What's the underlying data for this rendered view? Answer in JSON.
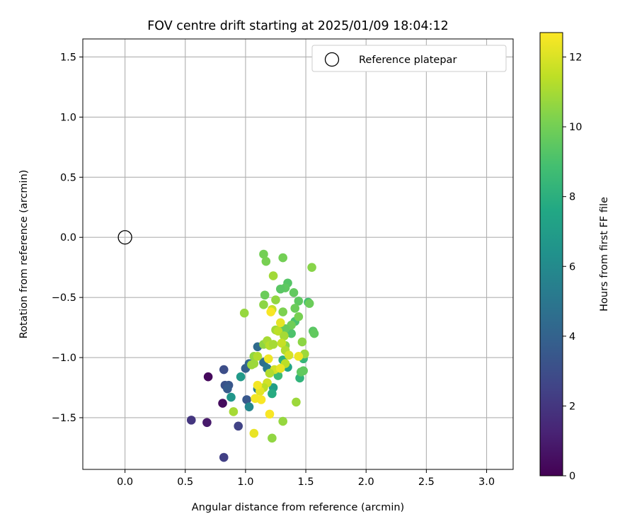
{
  "chart_data": {
    "type": "scatter",
    "title": "FOV centre drift starting at 2025/01/09 18:04:12",
    "xlabel": "Angular distance from reference (arcmin)",
    "ylabel": "Rotation from reference (arcmin)",
    "xlim": [
      -0.35,
      3.22
    ],
    "ylim": [
      -1.93,
      1.65
    ],
    "xticks": [
      0.0,
      0.5,
      1.0,
      1.5,
      2.0,
      2.5,
      3.0
    ],
    "xtick_labels": [
      "0.0",
      "0.5",
      "1.0",
      "1.5",
      "2.0",
      "2.5",
      "3.0"
    ],
    "yticks": [
      1.5,
      1.0,
      0.5,
      0.0,
      -0.5,
      -1.0,
      -1.5
    ],
    "ytick_labels": [
      "1.5",
      "1.0",
      "0.5",
      "0.0",
      "−0.5",
      "−1.0",
      "−1.5"
    ],
    "grid": true,
    "legend": {
      "position": "top-right",
      "label": "Reference platepar"
    },
    "reference_point": {
      "x": 0.0,
      "y": 0.0
    },
    "colorbar": {
      "label": "Hours from first FF file",
      "range": [
        0,
        12.7
      ],
      "ticks": [
        0,
        2,
        4,
        6,
        8,
        10,
        12
      ],
      "tick_labels": [
        "0",
        "2",
        "4",
        "6",
        "8",
        "10",
        "12"
      ],
      "colormap": "viridis"
    },
    "points": [
      [
        0.69,
        -1.16,
        0.3
      ],
      [
        0.81,
        -1.38,
        0.4
      ],
      [
        0.68,
        -1.54,
        0.9
      ],
      [
        0.55,
        -1.52,
        2.0
      ],
      [
        0.82,
        -1.83,
        2.4
      ],
      [
        0.94,
        -1.57,
        2.5
      ],
      [
        0.82,
        -1.1,
        3.0
      ],
      [
        0.83,
        -1.23,
        3.2
      ],
      [
        0.86,
        -1.23,
        3.4
      ],
      [
        0.85,
        -1.26,
        3.6
      ],
      [
        1.01,
        -1.35,
        3.5
      ],
      [
        1.0,
        -1.09,
        3.8
      ],
      [
        1.03,
        -1.05,
        4.2
      ],
      [
        1.1,
        -0.91,
        4.4
      ],
      [
        1.15,
        -1.04,
        4.6
      ],
      [
        1.18,
        -1.09,
        5.2
      ],
      [
        1.1,
        -1.26,
        5.4
      ],
      [
        1.03,
        -1.41,
        5.8
      ],
      [
        0.88,
        -1.33,
        6.6
      ],
      [
        0.96,
        -1.16,
        6.8
      ],
      [
        1.23,
        -1.25,
        7.0
      ],
      [
        1.35,
        -1.08,
        7.4
      ],
      [
        1.22,
        -1.3,
        7.8
      ],
      [
        1.31,
        -1.02,
        8.0
      ],
      [
        1.45,
        -1.17,
        8.2
      ],
      [
        1.48,
        -1.01,
        8.4
      ],
      [
        1.27,
        -1.15,
        8.6
      ],
      [
        1.52,
        -0.54,
        8.8
      ],
      [
        1.41,
        -0.7,
        9.0
      ],
      [
        1.38,
        -0.8,
        9.1
      ],
      [
        1.35,
        -0.38,
        9.3
      ],
      [
        1.33,
        -0.42,
        9.5
      ],
      [
        1.29,
        -0.43,
        9.4
      ],
      [
        1.4,
        -0.46,
        9.6
      ],
      [
        1.44,
        -0.53,
        9.5
      ],
      [
        1.41,
        -0.59,
        9.8
      ],
      [
        1.38,
        -0.73,
        9.9
      ],
      [
        1.33,
        -0.76,
        9.7
      ],
      [
        1.31,
        -0.62,
        10.2
      ],
      [
        1.28,
        -0.77,
        9.6
      ],
      [
        1.16,
        -0.48,
        9.8
      ],
      [
        1.15,
        -0.14,
        10.0
      ],
      [
        1.17,
        -0.2,
        10.1
      ],
      [
        1.31,
        -0.17,
        10.0
      ],
      [
        1.56,
        -0.78,
        9.4
      ],
      [
        1.57,
        -0.8,
        9.6
      ],
      [
        1.53,
        -0.55,
        9.8
      ],
      [
        1.44,
        -0.66,
        10.1
      ],
      [
        1.46,
        -1.12,
        9.5
      ],
      [
        1.48,
        -1.11,
        9.6
      ],
      [
        1.33,
        -0.9,
        10.4
      ],
      [
        1.25,
        -0.52,
        10.6
      ],
      [
        1.55,
        -0.25,
        10.4
      ],
      [
        1.47,
        -0.87,
        10.5
      ],
      [
        1.49,
        -0.97,
        10.8
      ],
      [
        1.15,
        -0.56,
        10.5
      ],
      [
        1.23,
        -0.32,
        10.9
      ],
      [
        1.15,
        -0.89,
        10.6
      ],
      [
        0.99,
        -0.63,
        10.7
      ],
      [
        1.07,
        -0.99,
        10.6
      ],
      [
        1.05,
        -1.06,
        10.8
      ],
      [
        1.07,
        -1.05,
        10.8
      ],
      [
        1.1,
        -0.99,
        11.2
      ],
      [
        1.18,
        -0.86,
        11.0
      ],
      [
        1.2,
        -0.9,
        11.3
      ],
      [
        1.23,
        -0.89,
        11.0
      ],
      [
        1.25,
        -0.77,
        10.9
      ],
      [
        1.27,
        -0.78,
        11.4
      ],
      [
        1.22,
        -0.6,
        11.6
      ],
      [
        1.29,
        -0.71,
        12.2
      ],
      [
        1.32,
        -0.82,
        11.0
      ],
      [
        1.3,
        -0.88,
        11.6
      ],
      [
        1.33,
        -0.94,
        11.2
      ],
      [
        1.36,
        -0.98,
        11.9
      ],
      [
        1.33,
        -1.05,
        11.4
      ],
      [
        1.24,
        -1.1,
        11.8
      ],
      [
        1.29,
        -1.09,
        12.3
      ],
      [
        1.2,
        -1.13,
        11.2
      ],
      [
        1.18,
        -1.21,
        11.8
      ],
      [
        1.15,
        -1.25,
        11.4
      ],
      [
        1.12,
        -1.28,
        12.2
      ],
      [
        1.1,
        -1.23,
        12.5
      ],
      [
        1.13,
        -1.35,
        12.6
      ],
      [
        1.08,
        -1.34,
        12.5
      ],
      [
        0.9,
        -1.45,
        11.0
      ],
      [
        1.07,
        -1.63,
        12.3
      ],
      [
        1.2,
        -1.47,
        12.6
      ],
      [
        1.31,
        -1.53,
        10.7
      ],
      [
        1.22,
        -1.67,
        10.6
      ],
      [
        1.42,
        -1.37,
        10.8
      ],
      [
        1.44,
        -0.99,
        12.4
      ],
      [
        1.21,
        -0.62,
        12.6
      ],
      [
        1.19,
        -1.01,
        12.4
      ]
    ]
  }
}
